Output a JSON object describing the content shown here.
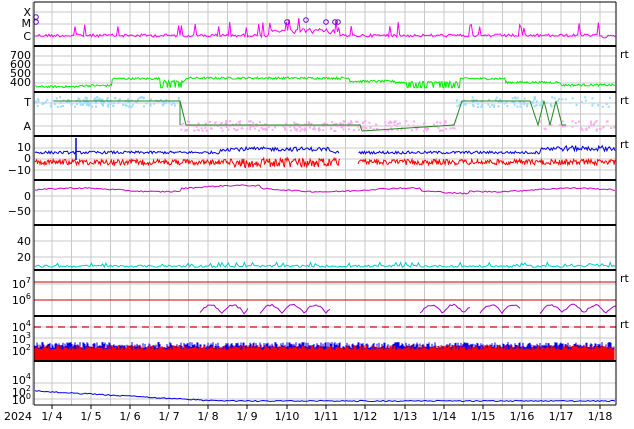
{
  "chart_data": [
    {
      "type": "line",
      "panel": "flare-class",
      "yticks": [
        "X",
        "M",
        "C"
      ],
      "series": [
        {
          "color": "#ff00ff",
          "shape": "noisy near C level with spikes"
        },
        {
          "color": "#6600cc",
          "markers": "circles near M/X level"
        }
      ]
    },
    {
      "type": "line",
      "panel": "solar-wind-speed",
      "yticks": [
        "700",
        "600",
        "500",
        "400"
      ],
      "ylim": [
        330,
        760
      ],
      "right_label": "rt",
      "series": [
        {
          "color": "#00ee00",
          "range": [
            350,
            520
          ]
        }
      ]
    },
    {
      "type": "scatter",
      "panel": "imf-sector",
      "yticks": [
        "T",
        "A"
      ],
      "right_label": "rt",
      "series": [
        {
          "color": "#99ddff",
          "level": "T"
        },
        {
          "color": "#ffaaee",
          "level": "A"
        },
        {
          "color": "#228822",
          "shape": "transition line"
        }
      ]
    },
    {
      "type": "line",
      "panel": "imf-bz-bt",
      "yticks": [
        "10",
        "0",
        "−10"
      ],
      "ylim": [
        -16,
        16
      ],
      "right_label": "rt",
      "series": [
        {
          "color": "#0000dd",
          "range": [
            0,
            10
          ]
        },
        {
          "color": "#ff0000",
          "range": [
            -7,
            2
          ]
        }
      ]
    },
    {
      "type": "line",
      "panel": "dst",
      "yticks": [
        "0",
        "−50"
      ],
      "ylim": [
        -78,
        22
      ],
      "series": [
        {
          "color": "#cc00cc",
          "range": [
            -15,
            8
          ]
        }
      ]
    },
    {
      "type": "line",
      "panel": "kp",
      "yticks": [
        "40",
        "20"
      ],
      "ylim": [
        0,
        50
      ],
      "series": [
        {
          "color": "#00cccc",
          "range": [
            2,
            8
          ]
        }
      ]
    },
    {
      "type": "line",
      "panel": "electron-flux",
      "yticks": [
        "7",
        "6"
      ],
      "ytick_base": "10",
      "right_label": "rt",
      "series": [
        {
          "color": "#aa00cc",
          "shape": "intermittent bumps"
        }
      ]
    },
    {
      "type": "bar",
      "panel": "proton-xray",
      "yticks": [
        "4",
        "3",
        "2"
      ],
      "ytick_base": "10",
      "right_label": "rt",
      "series": [
        {
          "color": "#0000ee",
          "range": [
            60,
            300
          ]
        },
        {
          "color": "#ff0000",
          "range": [
            40,
            200
          ]
        },
        {
          "color": "#cc0000",
          "shape": "dashed threshold at 10^4",
          "value": 10000
        }
      ]
    },
    {
      "type": "line",
      "panel": "fluence",
      "yticks": [
        "4",
        "2",
        "0"
      ],
      "ytick_base": "10",
      "series": [
        {
          "color": "#0000ee",
          "shape": "decays from ~10^1.5 to ~10^0.1"
        }
      ]
    }
  ],
  "x_axis": {
    "year_label": "2024",
    "ticks": [
      "1/ 4",
      "1/ 5",
      "1/ 6",
      "1/ 7",
      "1/ 8",
      "1/ 9",
      "1/10",
      "1/11",
      "1/12",
      "1/13",
      "1/14",
      "1/15",
      "1/16",
      "1/17",
      "1/18"
    ]
  }
}
